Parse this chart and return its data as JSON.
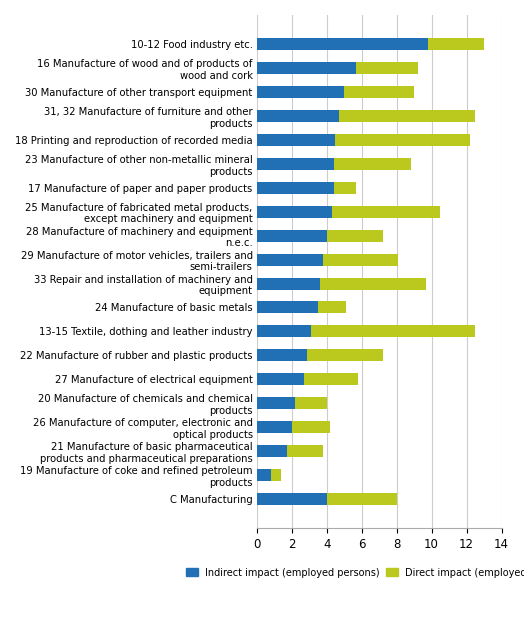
{
  "categories": [
    "C Manufacturing",
    "19 Manufacture of coke and refined petroleum\nproducts",
    "21 Manufacture of basic pharmaceutical\nproducts and pharmaceutical preparations",
    "26 Manufacture of computer, electronic and\noptical products",
    "20 Manufacture of chemicals and chemical\nproducts",
    "27 Manufacture of electrical equipment",
    "22 Manufacture of rubber and plastic products",
    "13-15 Textile, dothing and leather industry",
    "24 Manufacture of basic metals",
    "33 Repair and installation of machinery and\nequipment",
    "29 Manufacture of motor vehicles, trailers and\nsemi-trailers",
    "28 Manufacture of machinery and equipment\nn.e.c.",
    "25 Manufacture of fabricated metal products,\nexcept machinery and equipment",
    "17 Manufacture of paper and paper products",
    "23 Manufacture of other non-metallic mineral\nproducts",
    "18 Printing and reproduction of recorded media",
    "31, 32 Manufacture of furniture and other\nproducts",
    "30 Manufacture of other transport equipment",
    "16 Manufacture of wood and of products of\nwood and cork",
    "10-12 Food industry etc."
  ],
  "indirect": [
    4.0,
    0.8,
    1.7,
    2.0,
    2.2,
    2.7,
    2.9,
    3.1,
    3.5,
    3.6,
    3.8,
    4.0,
    4.3,
    4.4,
    4.4,
    4.5,
    4.7,
    5.0,
    5.7,
    9.8
  ],
  "direct": [
    4.0,
    0.6,
    2.1,
    2.2,
    1.8,
    3.1,
    4.3,
    9.4,
    1.6,
    6.1,
    4.3,
    3.2,
    6.2,
    1.3,
    4.4,
    7.7,
    7.8,
    4.0,
    3.5,
    3.2
  ],
  "indirect_color": "#2170b5",
  "direct_color": "#bbc91f",
  "xlim": [
    0,
    14
  ],
  "xticks": [
    0,
    2,
    4,
    6,
    8,
    10,
    12,
    14
  ],
  "indirect_label": "Indirect impact (employed persons)",
  "direct_label": "Direct impact (employed persons)",
  "background_color": "#ffffff",
  "grid_color": "#cccccc",
  "label_fontsize": 7.2,
  "tick_fontsize": 8.5,
  "bar_height": 0.5
}
